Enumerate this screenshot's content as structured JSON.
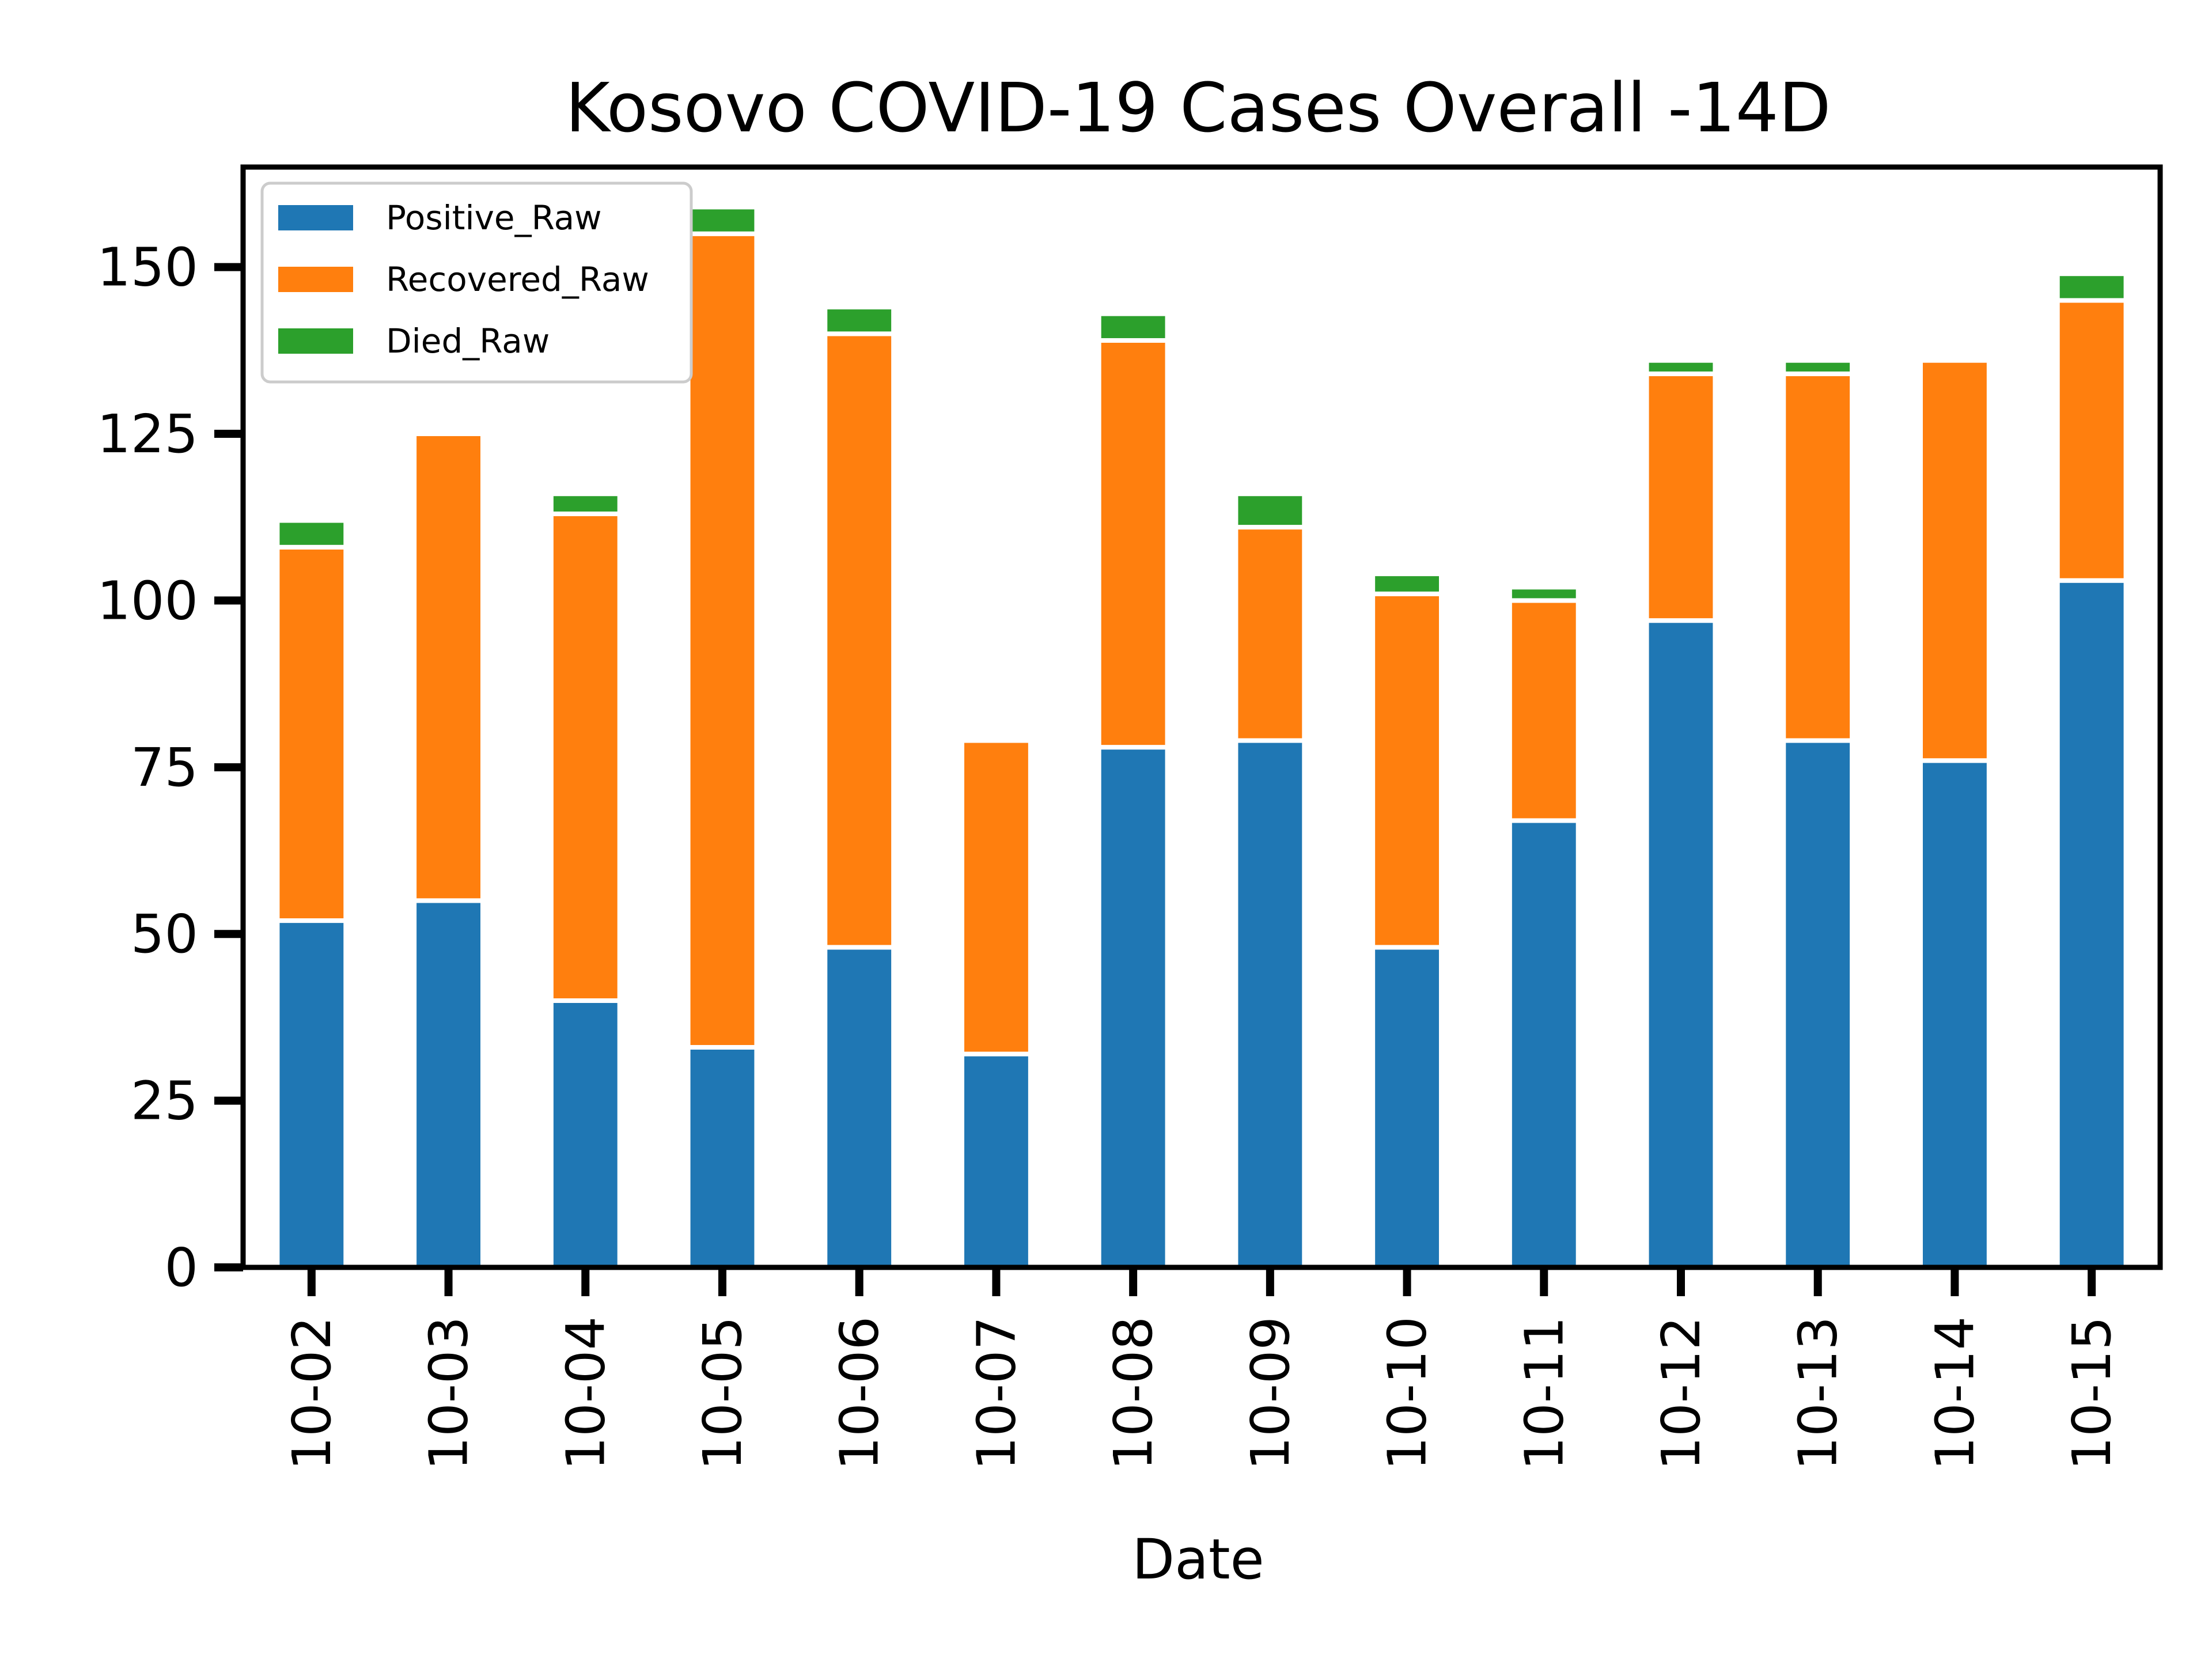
{
  "chart_data": {
    "type": "bar",
    "stacked": true,
    "title": "Kosovo COVID-19 Cases Overall -14D",
    "xlabel": "Date",
    "ylabel": "",
    "ylim": [
      0,
      165
    ],
    "yticks": [
      0,
      25,
      50,
      75,
      100,
      125,
      150
    ],
    "legend_position": "top-left",
    "grid": false,
    "categories": [
      "10-02",
      "10-03",
      "10-04",
      "10-05",
      "10-06",
      "10-07",
      "10-08",
      "10-09",
      "10-10",
      "10-11",
      "10-12",
      "10-13",
      "10-14",
      "10-15"
    ],
    "series": [
      {
        "name": "Positive_Raw",
        "color": "#1f77b4",
        "values": [
          52,
          55,
          40,
          33,
          48,
          32,
          78,
          79,
          48,
          67,
          97,
          79,
          76,
          103
        ]
      },
      {
        "name": "Recovered_Raw",
        "color": "#ff7f0e",
        "values": [
          56,
          70,
          73,
          122,
          92,
          47,
          61,
          32,
          53,
          33,
          37,
          55,
          60,
          42
        ]
      },
      {
        "name": "Died_Raw",
        "color": "#2ca02c",
        "values": [
          4,
          0,
          3,
          4,
          4,
          0,
          4,
          5,
          3,
          2,
          2,
          2,
          0,
          4
        ]
      }
    ]
  }
}
